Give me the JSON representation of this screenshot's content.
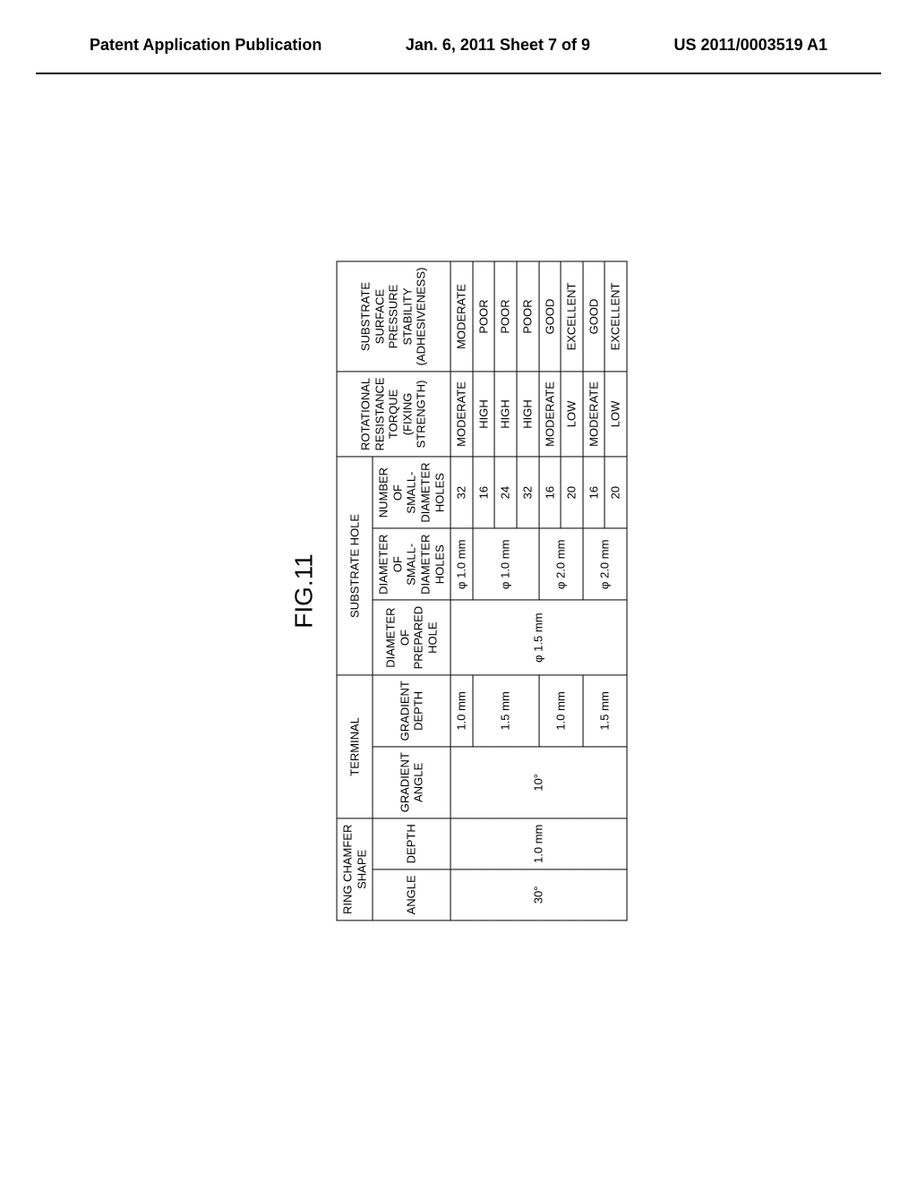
{
  "header": {
    "left": "Patent Application Publication",
    "center": "Jan. 6, 2011  Sheet 7 of 9",
    "right": "US 2011/0003519 A1"
  },
  "figure": {
    "label": "FIG.11",
    "table": {
      "header_groups": [
        {
          "label": "RING CHAMFER\nSHAPE",
          "colspan": 2
        },
        {
          "label": "TERMINAL",
          "colspan": 2
        },
        {
          "label": "SUBSTRATE HOLE",
          "colspan": 3
        },
        {
          "label": "ROTATIONAL\nRESISTANCE\nTORQUE\n(FIXING\nSTRENGTH)",
          "colspan": 1,
          "rowspan": 2
        },
        {
          "label": "SUBSTRATE\nSURFACE\nPRESSURE\nSTABILITY\n(ADHESIVENESS)",
          "colspan": 1,
          "rowspan": 2
        }
      ],
      "sub_headers": [
        "ANGLE",
        "DEPTH",
        "GRADIENT\nANGLE",
        "GRADIENT\nDEPTH",
        "DIAMETER OF\nPREPARED\nHOLE",
        "DIAMETER OF\nSMALL-DIAMETER\nHOLES",
        "NUMBER OF\nSMALL-DIAMETER\nHOLES"
      ],
      "shared": {
        "angle": "30°",
        "depth": "1.0 mm",
        "gradient_angle": "10°",
        "prepared_hole": "φ 1.5 mm"
      },
      "blocks": [
        {
          "gradient_depth": "1.0 mm",
          "small_diameter": "φ 1.0 mm",
          "rows": [
            {
              "num_holes": "32",
              "torque": "MODERATE",
              "stability": "MODERATE"
            }
          ],
          "single_row": true
        },
        {
          "gradient_depth": "1.5 mm",
          "small_diameter": "φ 1.0 mm",
          "rows": [
            {
              "num_holes": "16",
              "torque": "HIGH",
              "stability": "POOR"
            },
            {
              "num_holes": "24",
              "torque": "HIGH",
              "stability": "POOR"
            },
            {
              "num_holes": "32",
              "torque": "HIGH",
              "stability": "POOR"
            }
          ]
        },
        {
          "gradient_depth": "1.0 mm",
          "small_diameter": "φ 2.0 mm",
          "rows": [
            {
              "num_holes": "16",
              "torque": "MODERATE",
              "stability": "GOOD"
            },
            {
              "num_holes": "20",
              "torque": "LOW",
              "stability": "EXCELLENT"
            }
          ]
        },
        {
          "gradient_depth": "1.5 mm",
          "small_diameter": "φ 2.0 mm",
          "rows": [
            {
              "num_holes": "16",
              "torque": "MODERATE",
              "stability": "GOOD"
            },
            {
              "num_holes": "20",
              "torque": "LOW",
              "stability": "EXCELLENT"
            }
          ]
        }
      ]
    }
  }
}
